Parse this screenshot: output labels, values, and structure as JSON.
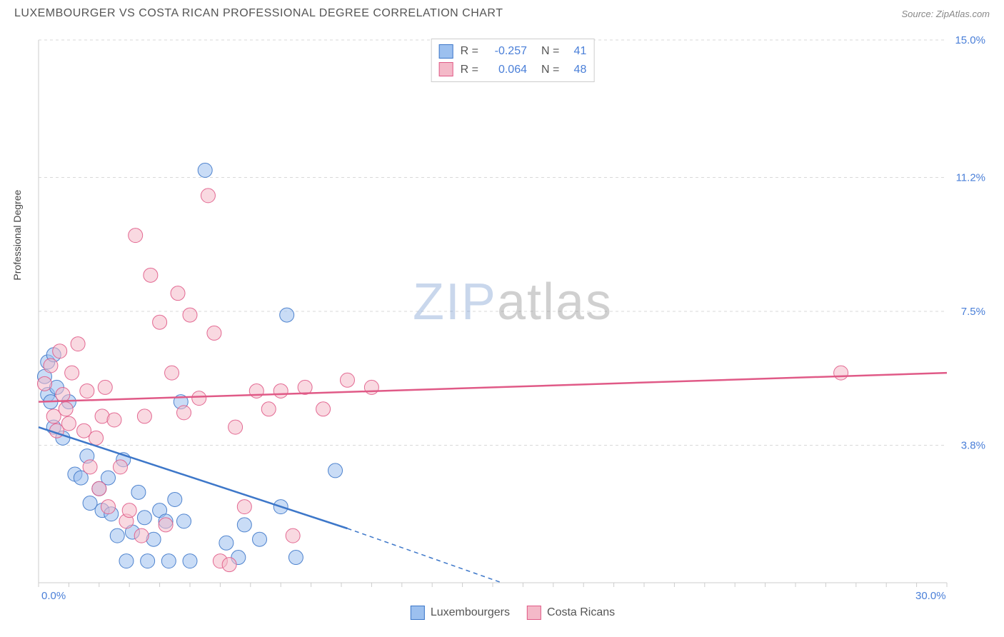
{
  "header": {
    "title": "LUXEMBOURGER VS COSTA RICAN PROFESSIONAL DEGREE CORRELATION CHART",
    "source": "Source: ZipAtlas.com"
  },
  "chart": {
    "type": "scatter",
    "ylabel": "Professional Degree",
    "xlim": [
      0,
      30
    ],
    "ylim": [
      0,
      15
    ],
    "x_ticks": [
      0.0,
      30.0
    ],
    "x_tick_labels": [
      "0.0%",
      "30.0%"
    ],
    "y_ticks": [
      3.8,
      7.5,
      11.2,
      15.0
    ],
    "y_tick_labels": [
      "3.8%",
      "7.5%",
      "11.2%",
      "15.0%"
    ],
    "background_color": "#ffffff",
    "grid_color": "#d9d9d9",
    "grid_dash": "4,4",
    "axis_color": "#cccccc",
    "tick_label_color": "#4a7fd8",
    "tick_fontsize": 15,
    "label_fontsize": 14,
    "marker_radius": 10,
    "marker_opacity": 0.55,
    "marker_stroke_opacity": 0.9,
    "watermark": {
      "prefix": "ZIP",
      "suffix": "atlas"
    },
    "series": [
      {
        "name": "Luxembourgers",
        "color_fill": "#9cc0ef",
        "color_stroke": "#3d77c9",
        "trend": {
          "solid_end_x": 10.2,
          "y_start": 4.3,
          "y_end_solid": 1.5,
          "y_end_dash": 0.0,
          "dash_end_x": 15.3
        },
        "points": [
          [
            0.2,
            5.7
          ],
          [
            0.3,
            6.1
          ],
          [
            0.3,
            5.2
          ],
          [
            0.4,
            5.0
          ],
          [
            0.5,
            4.3
          ],
          [
            0.5,
            6.3
          ],
          [
            0.6,
            5.4
          ],
          [
            0.8,
            4.0
          ],
          [
            1.0,
            5.0
          ],
          [
            1.2,
            3.0
          ],
          [
            1.4,
            2.9
          ],
          [
            1.6,
            3.5
          ],
          [
            1.7,
            2.2
          ],
          [
            2.0,
            2.6
          ],
          [
            2.1,
            2.0
          ],
          [
            2.3,
            2.9
          ],
          [
            2.4,
            1.9
          ],
          [
            2.6,
            1.3
          ],
          [
            2.8,
            3.4
          ],
          [
            2.9,
            0.6
          ],
          [
            3.1,
            1.4
          ],
          [
            3.3,
            2.5
          ],
          [
            3.5,
            1.8
          ],
          [
            3.6,
            0.6
          ],
          [
            3.8,
            1.2
          ],
          [
            4.0,
            2.0
          ],
          [
            4.2,
            1.7
          ],
          [
            4.3,
            0.6
          ],
          [
            4.5,
            2.3
          ],
          [
            4.7,
            5.0
          ],
          [
            4.8,
            1.7
          ],
          [
            5.0,
            0.6
          ],
          [
            5.5,
            11.4
          ],
          [
            6.2,
            1.1
          ],
          [
            6.6,
            0.7
          ],
          [
            6.8,
            1.6
          ],
          [
            7.3,
            1.2
          ],
          [
            8.0,
            2.1
          ],
          [
            8.2,
            7.4
          ],
          [
            8.5,
            0.7
          ],
          [
            9.8,
            3.1
          ]
        ]
      },
      {
        "name": "Costa Ricans",
        "color_fill": "#f4b9c8",
        "color_stroke": "#e05a87",
        "trend": {
          "y_start": 5.0,
          "y_end": 5.8
        },
        "points": [
          [
            0.2,
            5.5
          ],
          [
            0.4,
            6.0
          ],
          [
            0.5,
            4.6
          ],
          [
            0.6,
            4.2
          ],
          [
            0.7,
            6.4
          ],
          [
            0.8,
            5.2
          ],
          [
            0.9,
            4.8
          ],
          [
            1.0,
            4.4
          ],
          [
            1.1,
            5.8
          ],
          [
            1.3,
            6.6
          ],
          [
            1.5,
            4.2
          ],
          [
            1.6,
            5.3
          ],
          [
            1.7,
            3.2
          ],
          [
            1.9,
            4.0
          ],
          [
            2.0,
            2.6
          ],
          [
            2.1,
            4.6
          ],
          [
            2.2,
            5.4
          ],
          [
            2.3,
            2.1
          ],
          [
            2.5,
            4.5
          ],
          [
            2.7,
            3.2
          ],
          [
            2.9,
            1.7
          ],
          [
            3.0,
            2.0
          ],
          [
            3.2,
            9.6
          ],
          [
            3.4,
            1.3
          ],
          [
            3.5,
            4.6
          ],
          [
            3.7,
            8.5
          ],
          [
            4.0,
            7.2
          ],
          [
            4.2,
            1.6
          ],
          [
            4.4,
            5.8
          ],
          [
            4.6,
            8.0
          ],
          [
            4.8,
            4.7
          ],
          [
            5.0,
            7.4
          ],
          [
            5.3,
            5.1
          ],
          [
            5.6,
            10.7
          ],
          [
            5.8,
            6.9
          ],
          [
            6.0,
            0.6
          ],
          [
            6.3,
            0.5
          ],
          [
            6.5,
            4.3
          ],
          [
            6.8,
            2.1
          ],
          [
            7.2,
            5.3
          ],
          [
            7.6,
            4.8
          ],
          [
            8.0,
            5.3
          ],
          [
            8.4,
            1.3
          ],
          [
            8.8,
            5.4
          ],
          [
            9.4,
            4.8
          ],
          [
            10.2,
            5.6
          ],
          [
            11.0,
            5.4
          ],
          [
            26.5,
            5.8
          ]
        ]
      }
    ],
    "legend_top": {
      "rows": [
        {
          "swatch_fill": "#9cc0ef",
          "swatch_stroke": "#3d77c9",
          "r_label": "R =",
          "r_value": "-0.257",
          "n_label": "N =",
          "n_value": "41"
        },
        {
          "swatch_fill": "#f4b9c8",
          "swatch_stroke": "#e05a87",
          "r_label": "R =",
          "r_value": "0.064",
          "n_label": "N =",
          "n_value": "48"
        }
      ]
    },
    "legend_bottom": [
      {
        "swatch_fill": "#9cc0ef",
        "swatch_stroke": "#3d77c9",
        "label": "Luxembourgers"
      },
      {
        "swatch_fill": "#f4b9c8",
        "swatch_stroke": "#e05a87",
        "label": "Costa Ricans"
      }
    ]
  }
}
